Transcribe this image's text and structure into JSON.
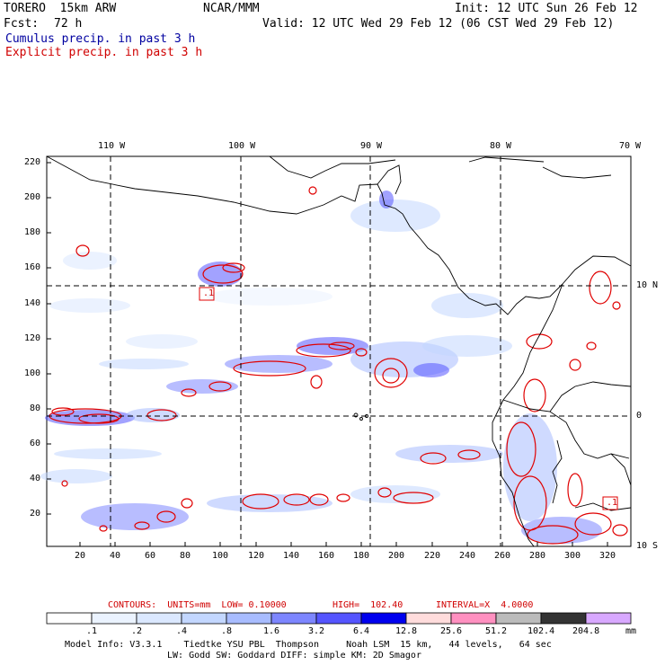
{
  "header": {
    "model": "TORERO  15km ARW",
    "org": "NCAR/MMM",
    "init": "Init: 12 UTC Sun 26 Feb 12",
    "fcst_label": "Fcst:",
    "fcst_value": "72 h",
    "valid": "Valid: 12 UTC Wed 29 Feb 12 (06 CST Wed 29 Feb 12)",
    "legend_cumulus": "Cumulus precip. in past 3 h",
    "legend_explicit": "Explicit precip. in past 3 h"
  },
  "map": {
    "lon_labels": [
      "110 W",
      "100 W",
      "90 W",
      "80 W",
      "70 W"
    ],
    "lat_labels": [
      "10 N",
      "0",
      "10 S"
    ],
    "y_ticks": [
      "220",
      "200",
      "180",
      "160",
      "140",
      "120",
      "100",
      "80",
      "60",
      "40",
      "20"
    ],
    "x_ticks": [
      "20",
      "40",
      "60",
      "80",
      "100",
      "120",
      "140",
      "160",
      "180",
      "200",
      "220",
      "240",
      "260",
      "280",
      "300",
      "320"
    ],
    "box_labels": [
      ".1",
      ".1"
    ]
  },
  "contours": {
    "units_label": "CONTOURS:  UNITS=mm  LOW= 0.10000",
    "high_label": "HIGH=  102.40",
    "interval_label": "INTERVAL=X  4.0000"
  },
  "colorbar": {
    "colors": [
      "#ffffff",
      "#ebf3ff",
      "#dbe8ff",
      "#c3d7ff",
      "#a8bcff",
      "#7d86ff",
      "#5555ff",
      "#0000ee",
      "#ffdcdc",
      "#ff90c0",
      "#bbbbbb",
      "#333333",
      "#d8a8ff"
    ],
    "tick_labels": [
      ".1",
      ".2",
      ".4",
      ".8",
      "1.6",
      "3.2",
      "6.4",
      "12.8",
      "25.6",
      "51.2",
      "102.4",
      "204.8"
    ],
    "units": "mm"
  },
  "footer": {
    "line1": "Model Info: V3.3.1    Tiedtke YSU PBL  Thompson     Noah LSM  15 km,   44 levels,   64 sec",
    "line2": "LW: Godd SW: Goddard DIFF: simple KM: 2D Smagor"
  }
}
